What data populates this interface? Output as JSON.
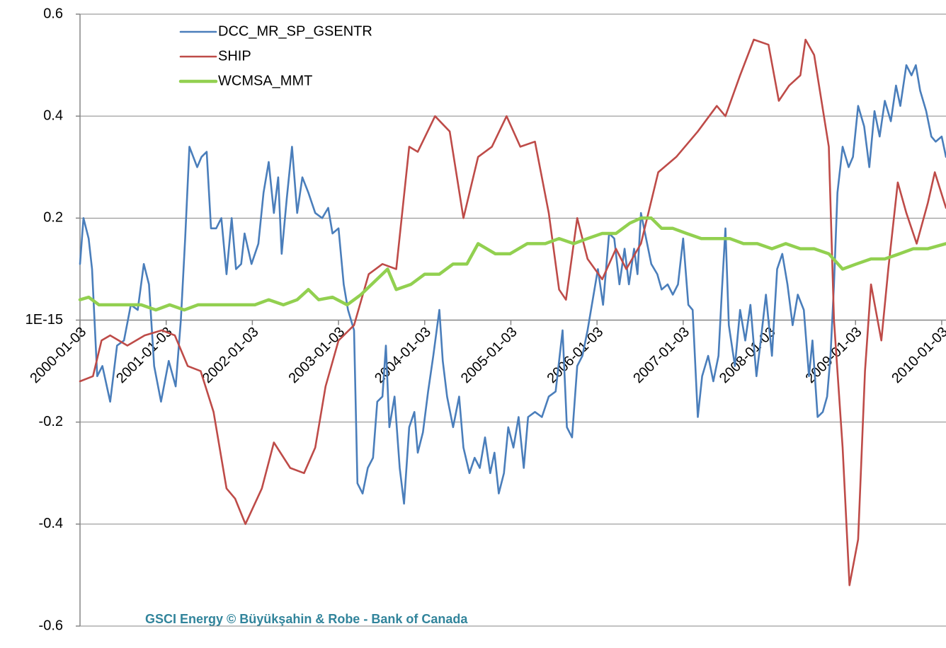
{
  "chart_data": {
    "type": "line",
    "source": "GSCI Energy © Büyükşahin & Robe - Bank of Canada",
    "xlim": [
      2000,
      2010.05
    ],
    "xticks": [
      {
        "value": 2000,
        "label": "2000-01-03"
      },
      {
        "value": 2001,
        "label": "2001-01-03"
      },
      {
        "value": 2002,
        "label": "2002-01-03"
      },
      {
        "value": 2003,
        "label": "2003-01-03"
      },
      {
        "value": 2004,
        "label": "2004-01-03"
      },
      {
        "value": 2005,
        "label": "2005-01-03"
      },
      {
        "value": 2006,
        "label": "2006-01-03"
      },
      {
        "value": 2007,
        "label": "2007-01-03"
      },
      {
        "value": 2008,
        "label": "2008-01-03"
      },
      {
        "value": 2009,
        "label": "2009-01-03"
      },
      {
        "value": 2010,
        "label": "2010-01-03"
      }
    ],
    "ylim": [
      -0.6,
      0.6
    ],
    "yticks": [
      -0.6,
      -0.4,
      -0.2,
      {
        "value": 0,
        "label": "1E-15"
      },
      0.2,
      0.4,
      0.6
    ],
    "grid": true,
    "legend": "upper-left",
    "series": [
      {
        "name": "DCC_MR_SP_GSENTR",
        "color": "#4a7ebb",
        "x": [
          2000.0,
          2000.04,
          2000.1,
          2000.14,
          2000.2,
          2000.26,
          2000.35,
          2000.43,
          2000.51,
          2000.59,
          2000.67,
          2000.74,
          2000.8,
          2000.86,
          2000.94,
          2001.03,
          2001.11,
          2001.17,
          2001.22,
          2001.27,
          2001.36,
          2001.41,
          2001.47,
          2001.52,
          2001.58,
          2001.64,
          2001.7,
          2001.76,
          2001.81,
          2001.87,
          2001.91,
          2001.99,
          2002.07,
          2002.13,
          2002.19,
          2002.25,
          2002.3,
          2002.34,
          2002.4,
          2002.46,
          2002.52,
          2002.58,
          2002.65,
          2002.73,
          2002.81,
          2002.88,
          2002.93,
          2003.0,
          2003.06,
          2003.11,
          2003.18,
          2003.22,
          2003.28,
          2003.34,
          2003.4,
          2003.45,
          2003.51,
          2003.55,
          2003.59,
          2003.65,
          2003.71,
          2003.76,
          2003.82,
          2003.88,
          2003.92,
          2003.98,
          2004.04,
          2004.1,
          2004.17,
          2004.21,
          2004.26,
          2004.33,
          2004.4,
          2004.45,
          2004.52,
          2004.58,
          2004.64,
          2004.7,
          2004.76,
          2004.81,
          2004.86,
          2004.92,
          2004.97,
          2005.03,
          2005.09,
          2005.15,
          2005.2,
          2005.28,
          2005.36,
          2005.44,
          2005.52,
          2005.6,
          2005.65,
          2005.71,
          2005.77,
          2005.83,
          2005.89,
          2005.96,
          2006.01,
          2006.07,
          2006.14,
          2006.2,
          2006.26,
          2006.32,
          2006.37,
          2006.43,
          2006.47,
          2006.51,
          2006.57,
          2006.63,
          2006.7,
          2006.75,
          2006.82,
          2006.88,
          2006.94,
          2007.0,
          2007.06,
          2007.11,
          2007.17,
          2007.22,
          2007.29,
          2007.35,
          2007.41,
          2007.45,
          2007.49,
          2007.53,
          2007.6,
          2007.66,
          2007.72,
          2007.78,
          2007.85,
          2007.9,
          2007.96,
          2008.03,
          2008.09,
          2008.15,
          2008.21,
          2008.27,
          2008.33,
          2008.4,
          2008.46,
          2008.5,
          2008.56,
          2008.62,
          2008.67,
          2008.71,
          2008.75,
          2008.79,
          2008.85,
          2008.92,
          2008.97,
          2009.03,
          2009.1,
          2009.16,
          2009.22,
          2009.28,
          2009.34,
          2009.41,
          2009.47,
          2009.52,
          2009.59,
          2009.65,
          2009.7,
          2009.75,
          2009.82,
          2009.88,
          2009.93,
          2010.0,
          2010.05
        ],
        "values": [
          0.11,
          0.2,
          0.16,
          0.1,
          -0.11,
          -0.09,
          -0.16,
          -0.05,
          -0.04,
          0.03,
          0.02,
          0.11,
          0.07,
          -0.09,
          -0.16,
          -0.08,
          -0.13,
          0.0,
          0.16,
          0.34,
          0.3,
          0.32,
          0.33,
          0.18,
          0.18,
          0.2,
          0.09,
          0.2,
          0.1,
          0.11,
          0.17,
          0.11,
          0.15,
          0.25,
          0.31,
          0.21,
          0.28,
          0.13,
          0.24,
          0.34,
          0.21,
          0.28,
          0.25,
          0.21,
          0.2,
          0.22,
          0.17,
          0.18,
          0.07,
          0.02,
          -0.02,
          -0.32,
          -0.34,
          -0.29,
          -0.27,
          -0.16,
          -0.15,
          -0.05,
          -0.21,
          -0.15,
          -0.29,
          -0.36,
          -0.21,
          -0.18,
          -0.26,
          -0.22,
          -0.14,
          -0.07,
          0.02,
          -0.08,
          -0.15,
          -0.21,
          -0.15,
          -0.25,
          -0.3,
          -0.27,
          -0.29,
          -0.23,
          -0.3,
          -0.26,
          -0.34,
          -0.3,
          -0.21,
          -0.25,
          -0.19,
          -0.29,
          -0.19,
          -0.18,
          -0.19,
          -0.15,
          -0.14,
          -0.02,
          -0.21,
          -0.23,
          -0.09,
          -0.07,
          -0.02,
          0.05,
          0.1,
          0.03,
          0.17,
          0.16,
          0.07,
          0.14,
          0.07,
          0.14,
          0.09,
          0.21,
          0.16,
          0.11,
          0.09,
          0.06,
          0.07,
          0.05,
          0.07,
          0.16,
          0.03,
          0.02,
          -0.19,
          -0.11,
          -0.07,
          -0.12,
          -0.07,
          0.06,
          0.18,
          -0.01,
          -0.09,
          0.02,
          -0.04,
          0.03,
          -0.11,
          -0.04,
          0.05,
          -0.07,
          0.1,
          0.13,
          0.07,
          -0.01,
          0.05,
          0.02,
          -0.11,
          -0.04,
          -0.19,
          -0.18,
          -0.15,
          -0.07,
          0.07,
          0.25,
          0.34,
          0.3,
          0.32,
          0.42,
          0.38,
          0.3,
          0.41,
          0.36,
          0.43,
          0.39,
          0.46,
          0.42,
          0.5,
          0.48,
          0.5,
          0.45,
          0.41,
          0.36,
          0.35,
          0.36,
          0.32
        ]
      },
      {
        "name": "SHIP",
        "color": "#be4b48",
        "x": [
          2000.0,
          2000.15,
          2000.25,
          2000.35,
          2000.55,
          2000.75,
          2000.95,
          2001.1,
          2001.25,
          2001.4,
          2001.55,
          2001.7,
          2001.8,
          2001.92,
          2002.11,
          2002.25,
          2002.44,
          2002.6,
          2002.73,
          2002.85,
          2003.0,
          2003.18,
          2003.35,
          2003.51,
          2003.67,
          2003.82,
          2003.92,
          2004.12,
          2004.29,
          2004.45,
          2004.62,
          2004.78,
          2004.95,
          2005.11,
          2005.28,
          2005.44,
          2005.56,
          2005.64,
          2005.77,
          2005.89,
          2006.06,
          2006.22,
          2006.34,
          2006.51,
          2006.71,
          2006.92,
          2007.17,
          2007.39,
          2007.49,
          2007.66,
          2007.82,
          2007.99,
          2008.11,
          2008.23,
          2008.36,
          2008.42,
          2008.52,
          2008.69,
          2008.75,
          2008.85,
          2008.93,
          2009.03,
          2009.11,
          2009.18,
          2009.3,
          2009.38,
          2009.49,
          2009.59,
          2009.71,
          2009.84,
          2009.92,
          2010.05
        ],
        "values": [
          -0.12,
          -0.11,
          -0.04,
          -0.03,
          -0.05,
          -0.03,
          -0.02,
          -0.03,
          -0.09,
          -0.1,
          -0.18,
          -0.33,
          -0.35,
          -0.4,
          -0.33,
          -0.24,
          -0.29,
          -0.3,
          -0.25,
          -0.13,
          -0.04,
          -0.01,
          0.09,
          0.11,
          0.1,
          0.34,
          0.33,
          0.4,
          0.37,
          0.2,
          0.32,
          0.34,
          0.4,
          0.34,
          0.35,
          0.21,
          0.06,
          0.04,
          0.2,
          0.12,
          0.08,
          0.14,
          0.1,
          0.15,
          0.29,
          0.32,
          0.37,
          0.42,
          0.4,
          0.48,
          0.55,
          0.54,
          0.43,
          0.46,
          0.48,
          0.55,
          0.52,
          0.34,
          0.0,
          -0.25,
          -0.52,
          -0.43,
          -0.1,
          0.07,
          -0.04,
          0.1,
          0.27,
          0.21,
          0.15,
          0.23,
          0.29,
          0.22
        ]
      },
      {
        "name": "WCMSA_MMT",
        "color": "#92d050",
        "x": [
          2000.0,
          2000.1,
          2000.22,
          2000.39,
          2000.55,
          2000.71,
          2000.88,
          2001.04,
          2001.21,
          2001.37,
          2001.54,
          2001.7,
          2001.87,
          2002.03,
          2002.19,
          2002.36,
          2002.52,
          2002.65,
          2002.77,
          2002.93,
          2003.1,
          2003.26,
          2003.57,
          2003.67,
          2003.84,
          2004.0,
          2004.17,
          2004.33,
          2004.49,
          2004.62,
          2004.82,
          2004.99,
          2005.19,
          2005.4,
          2005.56,
          2005.73,
          2005.89,
          2006.06,
          2006.22,
          2006.38,
          2006.51,
          2006.63,
          2006.75,
          2006.88,
          2007.04,
          2007.21,
          2007.37,
          2007.54,
          2007.7,
          2007.86,
          2008.03,
          2008.19,
          2008.36,
          2008.52,
          2008.69,
          2008.85,
          2009.01,
          2009.18,
          2009.34,
          2009.51,
          2009.67,
          2009.84,
          2010.05
        ],
        "values": [
          0.04,
          0.045,
          0.03,
          0.03,
          0.03,
          0.03,
          0.02,
          0.03,
          0.02,
          0.03,
          0.03,
          0.03,
          0.03,
          0.03,
          0.04,
          0.03,
          0.04,
          0.06,
          0.04,
          0.045,
          0.03,
          0.05,
          0.1,
          0.06,
          0.07,
          0.09,
          0.09,
          0.11,
          0.11,
          0.15,
          0.13,
          0.13,
          0.15,
          0.15,
          0.16,
          0.15,
          0.16,
          0.17,
          0.17,
          0.19,
          0.2,
          0.2,
          0.18,
          0.18,
          0.17,
          0.16,
          0.16,
          0.16,
          0.15,
          0.15,
          0.14,
          0.15,
          0.14,
          0.14,
          0.13,
          0.1,
          0.11,
          0.12,
          0.12,
          0.13,
          0.14,
          0.14,
          0.15
        ]
      }
    ]
  }
}
